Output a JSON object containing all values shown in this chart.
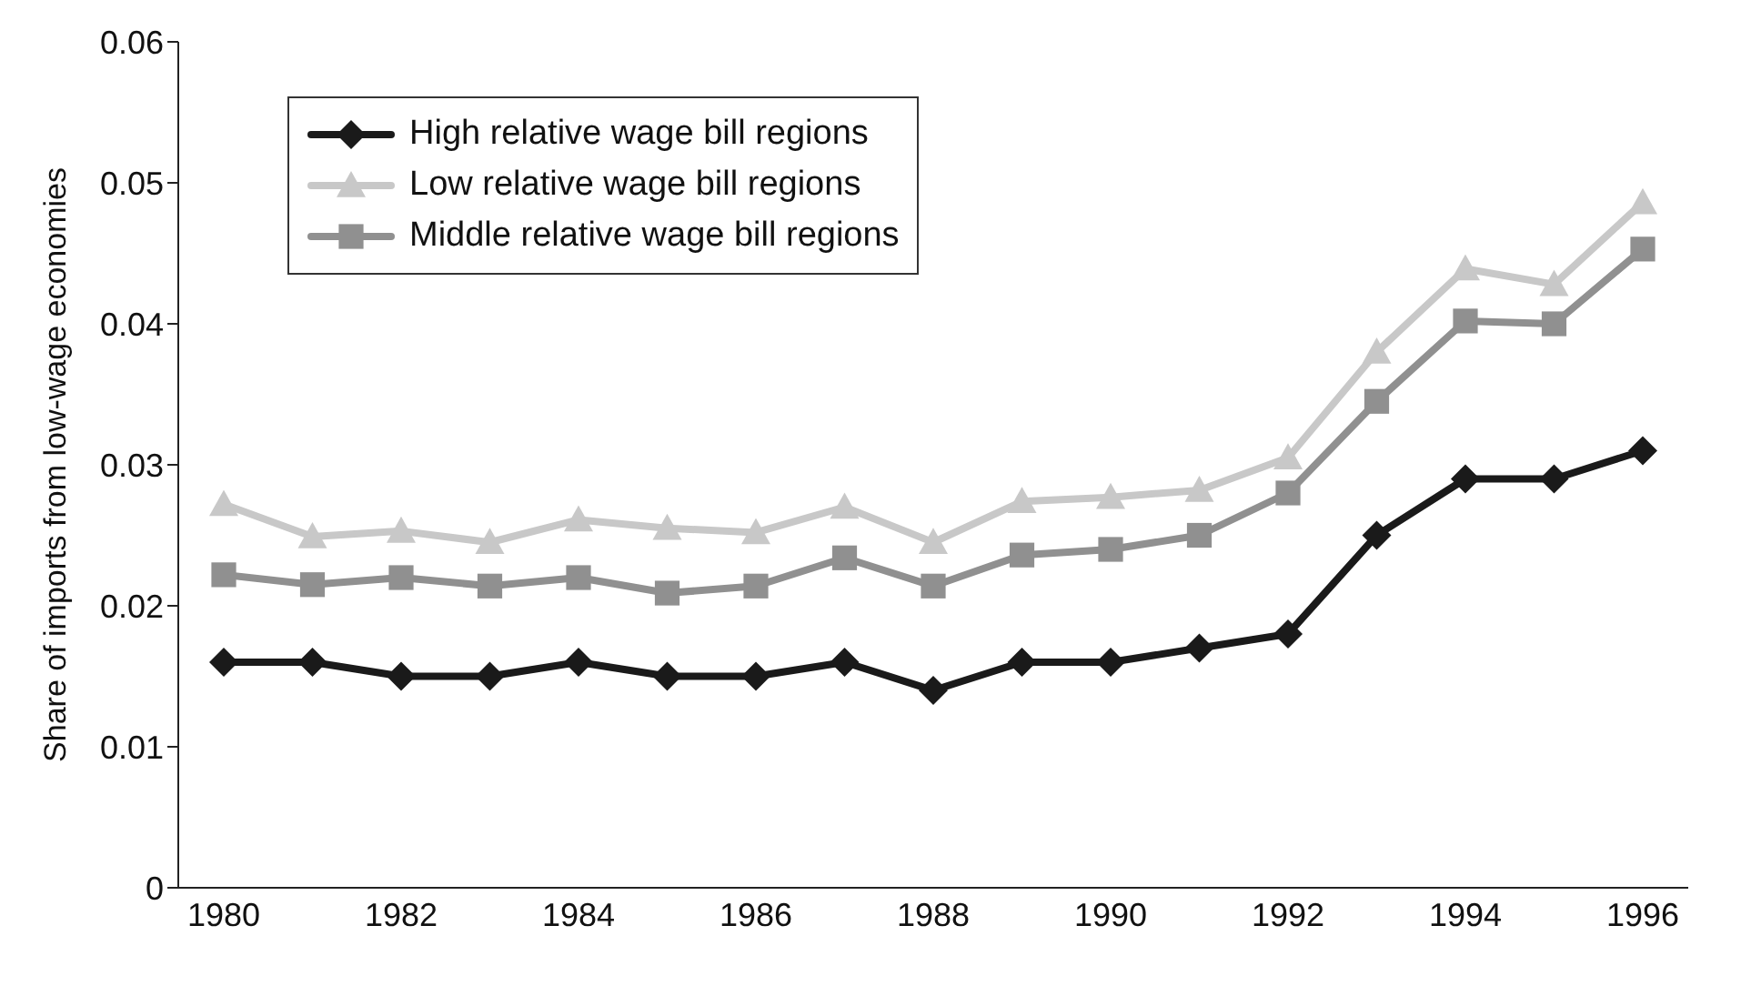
{
  "chart_data": {
    "type": "line",
    "ylabel": "Share of imports from low-wage economies",
    "categories": [
      "1980",
      null,
      "1982",
      null,
      "1984",
      null,
      "1986",
      null,
      "1988",
      null,
      "1990",
      null,
      "1992",
      null,
      "1994",
      null,
      "1996"
    ],
    "series": [
      {
        "name": "High relative wage bill regions",
        "color": "#1a1a1a",
        "marker": "diamond",
        "values": [
          0.016,
          0.016,
          0.015,
          0.015,
          0.016,
          0.015,
          0.015,
          0.016,
          0.014,
          0.016,
          0.016,
          0.017,
          0.018,
          0.025,
          0.029,
          0.029,
          0.031
        ]
      },
      {
        "name": "Low relative wage bill regions",
        "color": "#c8c8c8",
        "marker": "triangle",
        "values": [
          0.0272,
          0.0249,
          0.0253,
          0.0245,
          0.0261,
          0.0255,
          0.0252,
          0.027,
          0.0245,
          0.0274,
          0.0277,
          0.0282,
          0.0305,
          0.038,
          0.0439,
          0.0428,
          0.0486
        ]
      },
      {
        "name": "Middle relative wage bill regions",
        "color": "#909090",
        "marker": "square",
        "values": [
          0.0222,
          0.0215,
          0.022,
          0.0214,
          0.022,
          0.0209,
          0.0214,
          0.0234,
          0.0214,
          0.0236,
          0.024,
          0.025,
          0.028,
          0.0345,
          0.0402,
          0.04,
          0.0453
        ]
      }
    ],
    "ylim": [
      0,
      0.06
    ],
    "yticks": [
      0,
      0.01,
      0.02,
      0.03,
      0.04,
      0.05,
      0.06
    ],
    "grid": false,
    "legend": "top left",
    "line_style": "solid"
  }
}
